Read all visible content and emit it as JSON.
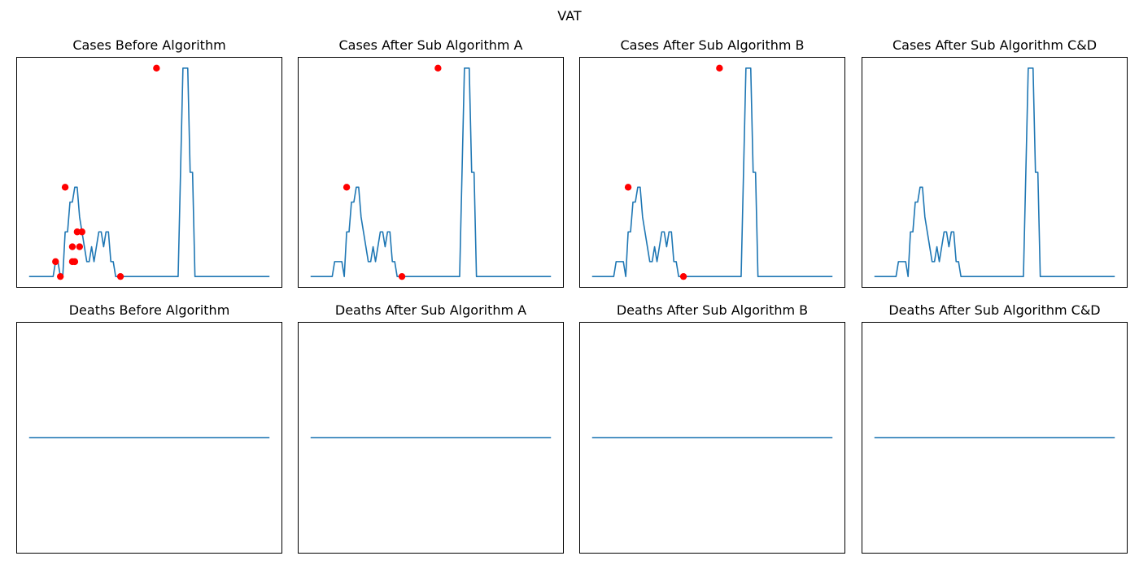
{
  "figure": {
    "suptitle": "VAT"
  },
  "chart_data": [
    {
      "type": "line",
      "title": "Cases Before Algorithm",
      "xlabel": "",
      "ylabel": "",
      "xlim": [
        -5,
        105
      ],
      "ylim": [
        -0.7,
        14.7
      ],
      "grid": false,
      "axes_ticks": "hidden",
      "line_color": "#1f77b4",
      "marker_color": "#ff0000",
      "x": [
        0,
        1,
        2,
        3,
        4,
        5,
        6,
        7,
        8,
        9,
        10,
        11,
        12,
        13,
        14,
        15,
        16,
        17,
        18,
        19,
        20,
        21,
        22,
        23,
        24,
        25,
        26,
        27,
        28,
        29,
        30,
        31,
        32,
        33,
        34,
        35,
        36,
        37,
        38,
        39,
        40,
        41,
        42,
        43,
        44,
        45,
        46,
        47,
        48,
        49,
        50,
        51,
        52,
        53,
        54,
        55,
        56,
        57,
        58,
        59,
        60,
        61,
        62,
        63,
        64,
        65,
        66,
        67,
        68,
        69,
        70,
        71,
        72,
        73,
        74,
        75,
        76,
        77,
        78,
        79,
        80,
        81,
        82,
        83,
        84,
        85,
        86,
        87,
        88,
        89,
        90,
        91,
        92,
        93,
        94,
        95,
        96,
        97,
        98,
        99,
        100
      ],
      "y": [
        0,
        0,
        0,
        0,
        0,
        0,
        0,
        0,
        0,
        0,
        0,
        1,
        1,
        0,
        0,
        3,
        3,
        5,
        5,
        6,
        6,
        4,
        3,
        2,
        1,
        1,
        2,
        1,
        2,
        3,
        3,
        2,
        3,
        3,
        1,
        1,
        0,
        0,
        0,
        0,
        0,
        0,
        0,
        0,
        0,
        0,
        0,
        0,
        0,
        0,
        0,
        0,
        0,
        0,
        0,
        0,
        0,
        0,
        0,
        0,
        0,
        0,
        0,
        7,
        14,
        14,
        14,
        7,
        7,
        0,
        0,
        0,
        0,
        0,
        0,
        0,
        0,
        0,
        0,
        0,
        0,
        0,
        0,
        0,
        0,
        0,
        0,
        0,
        0,
        0,
        0,
        0,
        0,
        0,
        0,
        0,
        0,
        0,
        0,
        0,
        0
      ],
      "markers": [
        [
          11,
          1
        ],
        [
          13,
          0
        ],
        [
          15,
          6
        ],
        [
          18,
          2
        ],
        [
          18,
          1
        ],
        [
          19,
          1
        ],
        [
          20,
          3
        ],
        [
          21,
          2
        ],
        [
          22,
          3
        ],
        [
          38,
          0
        ],
        [
          53,
          14
        ]
      ]
    },
    {
      "type": "line",
      "title": "Cases After Sub Algorithm A",
      "xlabel": "",
      "ylabel": "",
      "xlim": [
        -5,
        105
      ],
      "ylim": [
        -0.7,
        14.7
      ],
      "grid": false,
      "axes_ticks": "hidden",
      "line_color": "#1f77b4",
      "marker_color": "#ff0000",
      "x": [
        0,
        1,
        2,
        3,
        4,
        5,
        6,
        7,
        8,
        9,
        10,
        11,
        12,
        13,
        14,
        15,
        16,
        17,
        18,
        19,
        20,
        21,
        22,
        23,
        24,
        25,
        26,
        27,
        28,
        29,
        30,
        31,
        32,
        33,
        34,
        35,
        36,
        37,
        38,
        39,
        40,
        41,
        42,
        43,
        44,
        45,
        46,
        47,
        48,
        49,
        50,
        51,
        52,
        53,
        54,
        55,
        56,
        57,
        58,
        59,
        60,
        61,
        62,
        63,
        64,
        65,
        66,
        67,
        68,
        69,
        70,
        71,
        72,
        73,
        74,
        75,
        76,
        77,
        78,
        79,
        80,
        81,
        82,
        83,
        84,
        85,
        86,
        87,
        88,
        89,
        90,
        91,
        92,
        93,
        94,
        95,
        96,
        97,
        98,
        99,
        100
      ],
      "y": [
        0,
        0,
        0,
        0,
        0,
        0,
        0,
        0,
        0,
        0,
        1,
        1,
        1,
        1,
        0,
        3,
        3,
        5,
        5,
        6,
        6,
        4,
        3,
        2,
        1,
        1,
        2,
        1,
        2,
        3,
        3,
        2,
        3,
        3,
        1,
        1,
        0,
        0,
        0,
        0,
        0,
        0,
        0,
        0,
        0,
        0,
        0,
        0,
        0,
        0,
        0,
        0,
        0,
        0,
        0,
        0,
        0,
        0,
        0,
        0,
        0,
        0,
        0,
        7,
        14,
        14,
        14,
        7,
        7,
        0,
        0,
        0,
        0,
        0,
        0,
        0,
        0,
        0,
        0,
        0,
        0,
        0,
        0,
        0,
        0,
        0,
        0,
        0,
        0,
        0,
        0,
        0,
        0,
        0,
        0,
        0,
        0,
        0,
        0,
        0,
        0
      ],
      "markers": [
        [
          15,
          6
        ],
        [
          38,
          0
        ],
        [
          53,
          14
        ]
      ]
    },
    {
      "type": "line",
      "title": "Cases After Sub Algorithm B",
      "xlabel": "",
      "ylabel": "",
      "xlim": [
        -5,
        105
      ],
      "ylim": [
        -0.7,
        14.7
      ],
      "grid": false,
      "axes_ticks": "hidden",
      "line_color": "#1f77b4",
      "marker_color": "#ff0000",
      "x": [
        0,
        1,
        2,
        3,
        4,
        5,
        6,
        7,
        8,
        9,
        10,
        11,
        12,
        13,
        14,
        15,
        16,
        17,
        18,
        19,
        20,
        21,
        22,
        23,
        24,
        25,
        26,
        27,
        28,
        29,
        30,
        31,
        32,
        33,
        34,
        35,
        36,
        37,
        38,
        39,
        40,
        41,
        42,
        43,
        44,
        45,
        46,
        47,
        48,
        49,
        50,
        51,
        52,
        53,
        54,
        55,
        56,
        57,
        58,
        59,
        60,
        61,
        62,
        63,
        64,
        65,
        66,
        67,
        68,
        69,
        70,
        71,
        72,
        73,
        74,
        75,
        76,
        77,
        78,
        79,
        80,
        81,
        82,
        83,
        84,
        85,
        86,
        87,
        88,
        89,
        90,
        91,
        92,
        93,
        94,
        95,
        96,
        97,
        98,
        99,
        100
      ],
      "y": [
        0,
        0,
        0,
        0,
        0,
        0,
        0,
        0,
        0,
        0,
        1,
        1,
        1,
        1,
        0,
        3,
        3,
        5,
        5,
        6,
        6,
        4,
        3,
        2,
        1,
        1,
        2,
        1,
        2,
        3,
        3,
        2,
        3,
        3,
        1,
        1,
        0,
        0,
        0,
        0,
        0,
        0,
        0,
        0,
        0,
        0,
        0,
        0,
        0,
        0,
        0,
        0,
        0,
        0,
        0,
        0,
        0,
        0,
        0,
        0,
        0,
        0,
        0,
        7,
        14,
        14,
        14,
        7,
        7,
        0,
        0,
        0,
        0,
        0,
        0,
        0,
        0,
        0,
        0,
        0,
        0,
        0,
        0,
        0,
        0,
        0,
        0,
        0,
        0,
        0,
        0,
        0,
        0,
        0,
        0,
        0,
        0,
        0,
        0,
        0,
        0
      ],
      "markers": [
        [
          15,
          6
        ],
        [
          38,
          0
        ],
        [
          53,
          14
        ]
      ]
    },
    {
      "type": "line",
      "title": "Cases After Sub Algorithm C&D",
      "xlabel": "",
      "ylabel": "",
      "xlim": [
        -5,
        105
      ],
      "ylim": [
        -0.7,
        14.7
      ],
      "grid": false,
      "axes_ticks": "hidden",
      "line_color": "#1f77b4",
      "marker_color": "#ff0000",
      "x": [
        0,
        1,
        2,
        3,
        4,
        5,
        6,
        7,
        8,
        9,
        10,
        11,
        12,
        13,
        14,
        15,
        16,
        17,
        18,
        19,
        20,
        21,
        22,
        23,
        24,
        25,
        26,
        27,
        28,
        29,
        30,
        31,
        32,
        33,
        34,
        35,
        36,
        37,
        38,
        39,
        40,
        41,
        42,
        43,
        44,
        45,
        46,
        47,
        48,
        49,
        50,
        51,
        52,
        53,
        54,
        55,
        56,
        57,
        58,
        59,
        60,
        61,
        62,
        63,
        64,
        65,
        66,
        67,
        68,
        69,
        70,
        71,
        72,
        73,
        74,
        75,
        76,
        77,
        78,
        79,
        80,
        81,
        82,
        83,
        84,
        85,
        86,
        87,
        88,
        89,
        90,
        91,
        92,
        93,
        94,
        95,
        96,
        97,
        98,
        99,
        100
      ],
      "y": [
        0,
        0,
        0,
        0,
        0,
        0,
        0,
        0,
        0,
        0,
        1,
        1,
        1,
        1,
        0,
        3,
        3,
        5,
        5,
        6,
        6,
        4,
        3,
        2,
        1,
        1,
        2,
        1,
        2,
        3,
        3,
        2,
        3,
        3,
        1,
        1,
        0,
        0,
        0,
        0,
        0,
        0,
        0,
        0,
        0,
        0,
        0,
        0,
        0,
        0,
        0,
        0,
        0,
        0,
        0,
        0,
        0,
        0,
        0,
        0,
        0,
        0,
        0,
        7,
        14,
        14,
        14,
        7,
        7,
        0,
        0,
        0,
        0,
        0,
        0,
        0,
        0,
        0,
        0,
        0,
        0,
        0,
        0,
        0,
        0,
        0,
        0,
        0,
        0,
        0,
        0,
        0,
        0,
        0,
        0,
        0,
        0,
        0,
        0,
        0,
        0
      ],
      "markers": []
    },
    {
      "type": "line",
      "title": "Deaths Before Algorithm",
      "xlabel": "",
      "ylabel": "",
      "xlim": [
        -5,
        105
      ],
      "ylim": [
        -0.055,
        0.055
      ],
      "grid": false,
      "axes_ticks": "hidden",
      "line_color": "#1f77b4",
      "marker_color": "#ff0000",
      "x": [
        0,
        100
      ],
      "y": [
        0,
        0
      ],
      "markers": []
    },
    {
      "type": "line",
      "title": "Deaths After Sub Algorithm A",
      "xlabel": "",
      "ylabel": "",
      "xlim": [
        -5,
        105
      ],
      "ylim": [
        -0.055,
        0.055
      ],
      "grid": false,
      "axes_ticks": "hidden",
      "line_color": "#1f77b4",
      "marker_color": "#ff0000",
      "x": [
        0,
        100
      ],
      "y": [
        0,
        0
      ],
      "markers": []
    },
    {
      "type": "line",
      "title": "Deaths After Sub Algorithm B",
      "xlabel": "",
      "ylabel": "",
      "xlim": [
        -5,
        105
      ],
      "ylim": [
        -0.055,
        0.055
      ],
      "grid": false,
      "axes_ticks": "hidden",
      "line_color": "#1f77b4",
      "marker_color": "#ff0000",
      "x": [
        0,
        100
      ],
      "y": [
        0,
        0
      ],
      "markers": []
    },
    {
      "type": "line",
      "title": "Deaths After Sub Algorithm C&D",
      "xlabel": "",
      "ylabel": "",
      "xlim": [
        -5,
        105
      ],
      "ylim": [
        -0.055,
        0.055
      ],
      "grid": false,
      "axes_ticks": "hidden",
      "line_color": "#1f77b4",
      "marker_color": "#ff0000",
      "x": [
        0,
        100
      ],
      "y": [
        0,
        0
      ],
      "markers": []
    }
  ]
}
